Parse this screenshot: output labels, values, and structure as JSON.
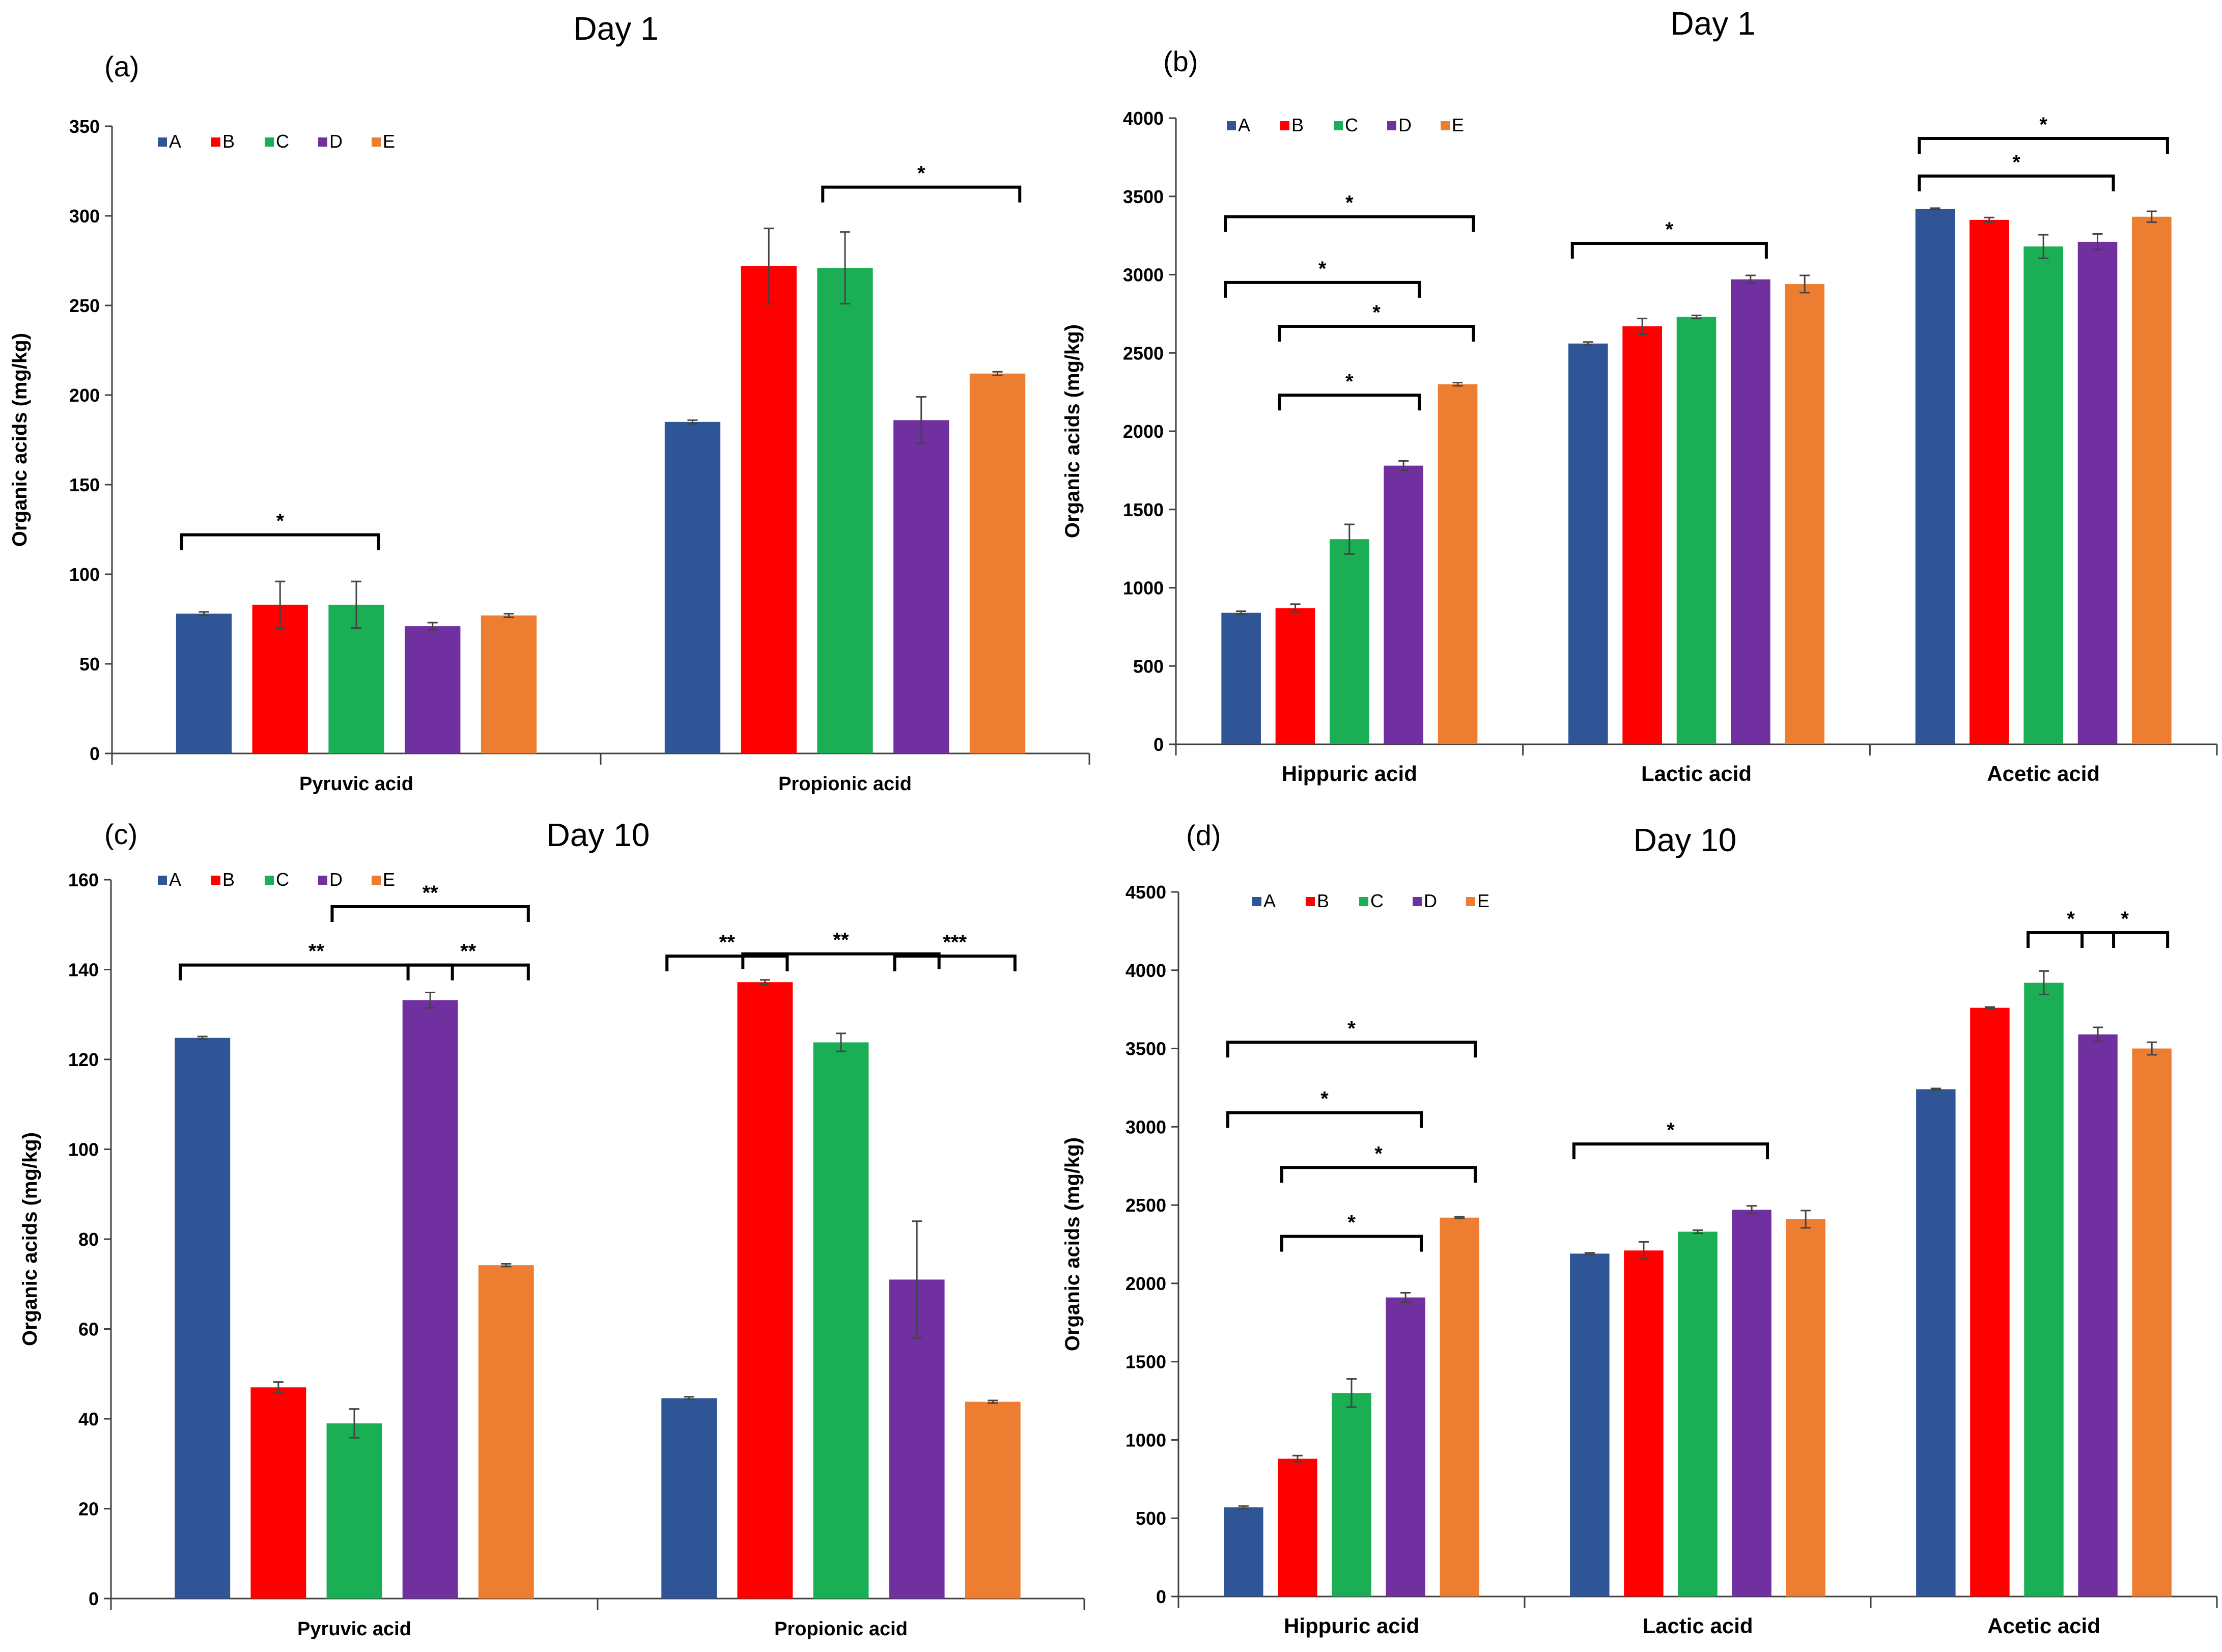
{
  "colors": {
    "A": "#2f5597",
    "B": "#ff0000",
    "C": "#1aaf54",
    "D": "#7030a0",
    "E": "#ed7d31",
    "axis": "#404040",
    "text": "#000000",
    "bracket": "#000000"
  },
  "chart_data": [
    {
      "type": "bar",
      "panel_label": "(a)",
      "title": "Day 1",
      "ylabel": "Organic acids (mg/kg)",
      "xlabel": "",
      "ylim": [
        0,
        350
      ],
      "yticks": [
        0,
        50,
        100,
        150,
        200,
        250,
        300,
        350
      ],
      "categories": [
        "Pyruvic acid",
        "Propionic acid"
      ],
      "legend_position": "top-left",
      "series": [
        {
          "name": "A",
          "values": [
            78,
            185
          ],
          "errors": [
            1,
            1
          ]
        },
        {
          "name": "B",
          "values": [
            83,
            272
          ],
          "errors": [
            13,
            21
          ]
        },
        {
          "name": "C",
          "values": [
            83,
            271
          ],
          "errors": [
            13,
            20
          ]
        },
        {
          "name": "D",
          "values": [
            71,
            186
          ],
          "errors": [
            2,
            13
          ]
        },
        {
          "name": "E",
          "values": [
            77,
            212
          ],
          "errors": [
            1,
            1
          ]
        }
      ],
      "significance": [
        {
          "category": 0,
          "from": 0,
          "to": 2,
          "label": "*",
          "y": 122
        },
        {
          "category": 1,
          "from": 2,
          "to": 4,
          "label": "*",
          "y": 316
        }
      ]
    },
    {
      "type": "bar",
      "panel_label": "(b)",
      "title": "Day 1",
      "ylabel": "Organic acids (mg/kg)",
      "xlabel": "",
      "ylim": [
        0,
        4000
      ],
      "yticks": [
        0,
        500,
        1000,
        1500,
        2000,
        2500,
        3000,
        3500,
        4000
      ],
      "categories": [
        "Hippuric acid",
        "Lactic acid",
        "Acetic acid"
      ],
      "legend_position": "top-left",
      "series": [
        {
          "name": "A",
          "values": [
            840,
            2560,
            3420
          ],
          "errors": [
            10,
            10,
            5
          ]
        },
        {
          "name": "B",
          "values": [
            870,
            2670,
            3350
          ],
          "errors": [
            25,
            50,
            15
          ]
        },
        {
          "name": "C",
          "values": [
            1310,
            2730,
            3180
          ],
          "errors": [
            95,
            10,
            75
          ]
        },
        {
          "name": "D",
          "values": [
            1780,
            2970,
            3210
          ],
          "errors": [
            30,
            25,
            50
          ]
        },
        {
          "name": "E",
          "values": [
            2300,
            2940,
            3370
          ],
          "errors": [
            10,
            55,
            35
          ]
        }
      ],
      "significance": [
        {
          "category": 0,
          "from": 0,
          "to": 4,
          "label": "*",
          "y": 3370
        },
        {
          "category": 0,
          "from": 0,
          "to": 3,
          "label": "*",
          "y": 2950
        },
        {
          "category": 0,
          "from": 1,
          "to": 4,
          "label": "*",
          "y": 2670
        },
        {
          "category": 0,
          "from": 1,
          "to": 3,
          "label": "*",
          "y": 2230
        },
        {
          "category": 1,
          "from": 0,
          "to": 3,
          "label": "*",
          "y": 3200
        },
        {
          "category": 2,
          "from": 0,
          "to": 4,
          "label": "*",
          "y": 3870
        },
        {
          "category": 2,
          "from": 0,
          "to": 3,
          "label": "*",
          "y": 3630
        }
      ]
    },
    {
      "type": "bar",
      "panel_label": "(c)",
      "title": "Day 10",
      "ylabel": "Organic acids (mg/kg)",
      "xlabel": "",
      "ylim": [
        0,
        160
      ],
      "yticks": [
        0,
        20,
        40,
        60,
        80,
        100,
        120,
        140,
        160
      ],
      "categories": [
        "Pyruvic acid",
        "Propionic acid"
      ],
      "legend_position": "top-left",
      "series": [
        {
          "name": "A",
          "values": [
            124.8,
            44.6
          ],
          "errors": [
            0.3,
            0.3
          ]
        },
        {
          "name": "B",
          "values": [
            47,
            137.2
          ],
          "errors": [
            1.2,
            0.5
          ]
        },
        {
          "name": "C",
          "values": [
            39,
            123.8
          ],
          "errors": [
            3.2,
            2
          ]
        },
        {
          "name": "D",
          "values": [
            133.2,
            71
          ],
          "errors": [
            1.7,
            13
          ]
        },
        {
          "name": "E",
          "values": [
            74.2,
            43.8
          ],
          "errors": [
            0.3,
            0.3
          ]
        }
      ],
      "significance": [
        {
          "category": 0,
          "from": 2,
          "to": 4,
          "label": "**",
          "y": 154
        },
        {
          "category": 0,
          "from": 0,
          "to": 3,
          "label": "**",
          "y": 141
        },
        {
          "category": 0,
          "from": 3,
          "to": 4,
          "label": "**",
          "y": 141
        },
        {
          "category": 1,
          "from": 0,
          "to": 1,
          "label": "**",
          "y": 143
        },
        {
          "category": 1,
          "from": 1,
          "to": 3,
          "label": "**",
          "y": 143.5
        },
        {
          "category": 1,
          "from": 3,
          "to": 4,
          "label": "***",
          "y": 143
        }
      ]
    },
    {
      "type": "bar",
      "panel_label": "(d)",
      "title": "Day 10",
      "ylabel": "Organic acids (mg/kg)",
      "xlabel": "",
      "ylim": [
        0,
        4500
      ],
      "yticks": [
        0,
        500,
        1000,
        1500,
        2000,
        2500,
        3000,
        3500,
        4000,
        4500
      ],
      "categories": [
        "Hippuric acid",
        "Lactic acid",
        "Acetic acid"
      ],
      "legend_position": "top-left",
      "series": [
        {
          "name": "A",
          "values": [
            570,
            2190,
            3240
          ],
          "errors": [
            8,
            5,
            5
          ]
        },
        {
          "name": "B",
          "values": [
            880,
            2210,
            3760
          ],
          "errors": [
            20,
            55,
            5
          ]
        },
        {
          "name": "C",
          "values": [
            1300,
            2330,
            3920
          ],
          "errors": [
            90,
            10,
            75
          ]
        },
        {
          "name": "D",
          "values": [
            1910,
            2470,
            3590
          ],
          "errors": [
            30,
            25,
            45
          ]
        },
        {
          "name": "E",
          "values": [
            2420,
            2410,
            3500
          ],
          "errors": [
            5,
            55,
            40
          ]
        }
      ],
      "significance": [
        {
          "category": 0,
          "from": 0,
          "to": 4,
          "label": "*",
          "y": 3540
        },
        {
          "category": 0,
          "from": 0,
          "to": 3,
          "label": "*",
          "y": 3090
        },
        {
          "category": 0,
          "from": 1,
          "to": 4,
          "label": "*",
          "y": 2740
        },
        {
          "category": 0,
          "from": 1,
          "to": 3,
          "label": "*",
          "y": 2300
        },
        {
          "category": 1,
          "from": 0,
          "to": 3,
          "label": "*",
          "y": 2890
        },
        {
          "category": 2,
          "from": 2,
          "to": 3,
          "label": "*",
          "y": 4240
        },
        {
          "category": 2,
          "from": 3,
          "to": 4,
          "label": "*",
          "y": 4240
        }
      ]
    }
  ]
}
